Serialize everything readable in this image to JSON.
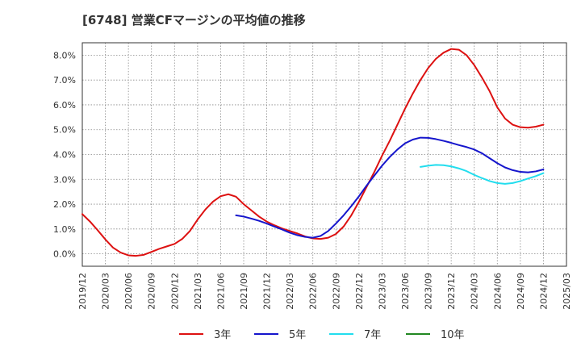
{
  "chart_data": {
    "type": "line",
    "title": "[6748]  営業CFマージンの平均値の推移",
    "xlabel": "",
    "ylabel": "",
    "ylim": [
      -0.5,
      8.5
    ],
    "y_ticks": [
      0.0,
      1.0,
      2.0,
      3.0,
      4.0,
      5.0,
      6.0,
      7.0,
      8.0
    ],
    "y_tick_labels": [
      "0.0%",
      "1.0%",
      "2.0%",
      "3.0%",
      "4.0%",
      "5.0%",
      "6.0%",
      "7.0%",
      "8.0%"
    ],
    "x_start": "2019/12",
    "x_end": "2025/03",
    "x_tick_labels": [
      "2019/12",
      "2020/03",
      "2020/06",
      "2020/09",
      "2020/12",
      "2021/03",
      "2021/06",
      "2021/09",
      "2021/12",
      "2022/03",
      "2022/06",
      "2022/09",
      "2022/12",
      "2023/03",
      "2023/06",
      "2023/09",
      "2023/12",
      "2024/03",
      "2024/06",
      "2024/09",
      "2024/12",
      "2025/03"
    ],
    "grid": true,
    "legend_position": "bottom",
    "series": [
      {
        "name": "3年",
        "color": "#dd1111",
        "x": [
          "2019/12",
          "2020/01",
          "2020/02",
          "2020/03",
          "2020/04",
          "2020/05",
          "2020/06",
          "2020/07",
          "2020/08",
          "2020/09",
          "2020/10",
          "2020/11",
          "2020/12",
          "2021/01",
          "2021/02",
          "2021/03",
          "2021/04",
          "2021/05",
          "2021/06",
          "2021/07",
          "2021/08",
          "2021/09",
          "2021/10",
          "2021/11",
          "2021/12",
          "2022/01",
          "2022/02",
          "2022/03",
          "2022/04",
          "2022/05",
          "2022/06",
          "2022/07",
          "2022/08",
          "2022/09",
          "2022/10",
          "2022/11",
          "2022/12",
          "2023/01",
          "2023/02",
          "2023/03",
          "2023/04",
          "2023/05",
          "2023/06",
          "2023/07",
          "2023/08",
          "2023/09",
          "2023/10",
          "2023/11",
          "2023/12",
          "2024/01",
          "2024/02",
          "2024/03",
          "2024/04",
          "2024/05",
          "2024/06",
          "2024/07",
          "2024/08",
          "2024/09",
          "2024/10",
          "2024/11",
          "2024/12"
        ],
        "values": [
          1.6,
          1.3,
          0.95,
          0.58,
          0.25,
          0.05,
          -0.06,
          -0.08,
          -0.04,
          0.08,
          0.2,
          0.3,
          0.4,
          0.6,
          0.92,
          1.38,
          1.78,
          2.1,
          2.32,
          2.4,
          2.3,
          2.0,
          1.75,
          1.5,
          1.3,
          1.15,
          1.02,
          0.92,
          0.82,
          0.7,
          0.62,
          0.6,
          0.65,
          0.8,
          1.1,
          1.55,
          2.1,
          2.7,
          3.3,
          3.95,
          4.55,
          5.2,
          5.85,
          6.45,
          7.0,
          7.48,
          7.85,
          8.1,
          8.25,
          8.22,
          8.0,
          7.6,
          7.1,
          6.55,
          5.9,
          5.45,
          5.2,
          5.1,
          5.08,
          5.12,
          5.2
        ]
      },
      {
        "name": "5年",
        "color": "#1515cc",
        "x": [
          "2021/08",
          "2021/09",
          "2021/10",
          "2021/11",
          "2021/12",
          "2022/01",
          "2022/02",
          "2022/03",
          "2022/04",
          "2022/05",
          "2022/06",
          "2022/07",
          "2022/08",
          "2022/09",
          "2022/10",
          "2022/11",
          "2022/12",
          "2023/01",
          "2023/02",
          "2023/03",
          "2023/04",
          "2023/05",
          "2023/06",
          "2023/07",
          "2023/08",
          "2023/09",
          "2023/10",
          "2023/11",
          "2023/12",
          "2024/01",
          "2024/02",
          "2024/03",
          "2024/04",
          "2024/05",
          "2024/06",
          "2024/07",
          "2024/08",
          "2024/09",
          "2024/10",
          "2024/11",
          "2024/12"
        ],
        "values": [
          1.55,
          1.5,
          1.42,
          1.33,
          1.22,
          1.1,
          0.98,
          0.85,
          0.75,
          0.68,
          0.65,
          0.72,
          0.92,
          1.22,
          1.55,
          1.92,
          2.32,
          2.75,
          3.15,
          3.55,
          3.9,
          4.2,
          4.45,
          4.6,
          4.68,
          4.67,
          4.62,
          4.55,
          4.47,
          4.38,
          4.3,
          4.2,
          4.05,
          3.85,
          3.65,
          3.48,
          3.37,
          3.3,
          3.28,
          3.32,
          3.4
        ]
      },
      {
        "name": "7年",
        "color": "#22ddee",
        "x": [
          "2023/08",
          "2023/09",
          "2023/10",
          "2023/11",
          "2023/12",
          "2024/01",
          "2024/02",
          "2024/03",
          "2024/04",
          "2024/05",
          "2024/06",
          "2024/07",
          "2024/08",
          "2024/09",
          "2024/10",
          "2024/11",
          "2024/12"
        ],
        "values": [
          3.5,
          3.55,
          3.58,
          3.57,
          3.52,
          3.44,
          3.33,
          3.18,
          3.05,
          2.93,
          2.85,
          2.82,
          2.85,
          2.93,
          3.03,
          3.13,
          3.25
        ]
      },
      {
        "name": "10年",
        "color": "#228822",
        "x": [],
        "values": []
      }
    ]
  }
}
